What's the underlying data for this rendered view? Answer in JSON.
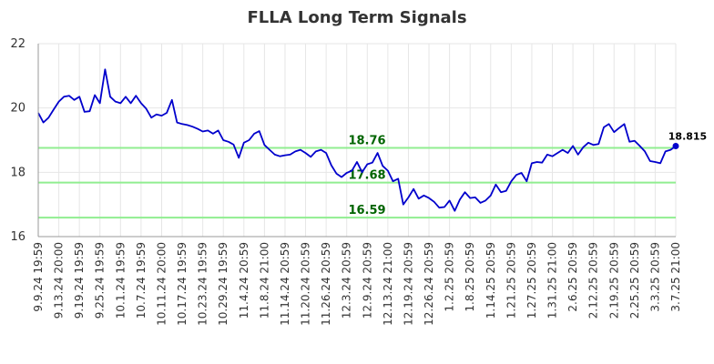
{
  "chart_data": {
    "type": "line",
    "title": "FLLA Long Term Signals",
    "ylim": [
      16,
      22
    ],
    "y_ticks": [
      "16",
      "18",
      "20",
      "22"
    ],
    "grid": true,
    "x_tick_labels": [
      "9.9.24 19:59",
      "9.13.24 20:00",
      "9.19.24 19:59",
      "9.25.24 19:59",
      "10.1.24 19:59",
      "10.7.24 19:59",
      "10.11.24 20:00",
      "10.17.24 19:59",
      "10.23.24 19:59",
      "10.29.24 19:59",
      "11.4.24 20:59",
      "11.8.24 21:00",
      "11.14.24 20:59",
      "11.20.24 20:59",
      "11.26.24 20:59",
      "12.3.24 20:59",
      "12.9.24 20:59",
      "12.13.24 21:00",
      "12.19.24 20:59",
      "12.26.24 20:59",
      "1.2.25 20:59",
      "1.8.25 20:59",
      "1.14.25 20:59",
      "1.21.25 20:59",
      "1.27.25 20:59",
      "1.31.25 21:00",
      "2.6.25 20:59",
      "2.12.25 20:59",
      "2.19.25 20:59",
      "2.25.25 20:59",
      "3.3.25 20:59",
      "3.7.25 21:00"
    ],
    "series": [
      {
        "color": "#0000cc",
        "values": [
          19.85,
          19.55,
          19.7,
          19.95,
          20.2,
          20.35,
          20.38,
          20.25,
          20.35,
          19.88,
          19.9,
          20.4,
          20.15,
          21.2,
          20.35,
          20.2,
          20.15,
          20.35,
          20.15,
          20.38,
          20.15,
          19.98,
          19.7,
          19.8,
          19.76,
          19.85,
          20.25,
          19.55,
          19.5,
          19.47,
          19.42,
          19.35,
          19.27,
          19.3,
          19.2,
          19.3,
          19.0,
          18.95,
          18.86,
          18.45,
          18.92,
          19.0,
          19.2,
          19.28,
          18.85,
          18.7,
          18.55,
          18.5,
          18.53,
          18.55,
          18.65,
          18.7,
          18.6,
          18.48,
          18.65,
          18.7,
          18.6,
          18.22,
          17.96,
          17.85,
          17.98,
          18.05,
          18.32,
          18.0,
          18.25,
          18.3,
          18.6,
          18.2,
          18.05,
          17.72,
          17.8,
          17.0,
          17.22,
          17.48,
          17.18,
          17.28,
          17.2,
          17.08,
          16.9,
          16.92,
          17.12,
          16.8,
          17.15,
          17.38,
          17.2,
          17.22,
          17.05,
          17.12,
          17.28,
          17.62,
          17.38,
          17.42,
          17.72,
          17.92,
          17.98,
          17.72,
          18.28,
          18.32,
          18.3,
          18.55,
          18.5,
          18.6,
          18.7,
          18.6,
          18.82,
          18.55,
          18.78,
          18.92,
          18.85,
          18.88,
          19.4,
          19.5,
          19.25,
          19.38,
          19.5,
          18.95,
          18.98,
          18.82,
          18.65,
          18.35,
          18.32,
          18.28,
          18.65,
          18.7,
          18.815
        ]
      }
    ],
    "signal_lines": [
      {
        "value": 18.76,
        "label": "18.76"
      },
      {
        "value": 17.68,
        "label": "17.68"
      },
      {
        "value": 16.59,
        "label": "16.59"
      }
    ],
    "last_label": "18.815",
    "colors": {
      "line": "#0000cc",
      "signal_line": "#90ee90",
      "signal_text": "#006400",
      "grid": "#e6e6e6",
      "axis": "#999999"
    }
  }
}
